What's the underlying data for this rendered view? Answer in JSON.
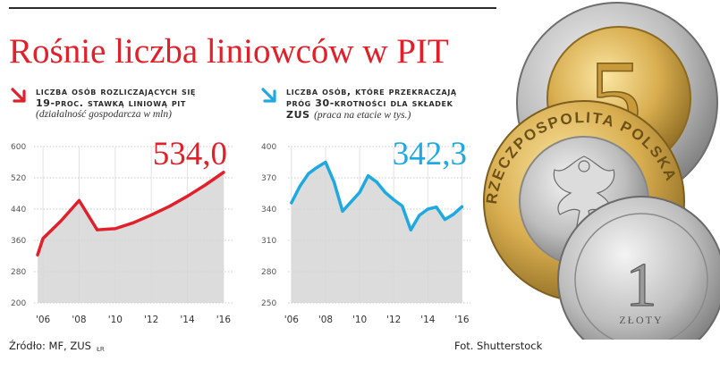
{
  "title": "Rośnie liczba liniowców w PIT",
  "colors": {
    "title": "#e0202a",
    "left_series": "#e0202a",
    "right_series": "#1fa9e1",
    "area": "#d8d8d8"
  },
  "left_panel": {
    "arrow_icon": "arrow-down-right-icon",
    "heading_line1": "Liczba osób rozliczających się",
    "heading_line2": "19-proc. stawką liniową PIT",
    "subtitle": "(działalność gospodarcza w mln)"
  },
  "right_panel": {
    "arrow_icon": "arrow-down-right-icon",
    "heading_line1": "Liczba osób, które przekraczają",
    "heading_line2": "próg 30-krotności dla składek",
    "heading_line3": "ZUS",
    "subtitle": "(praca na etacie w tys.)"
  },
  "source": {
    "text": "Źródło: MF, ZUS",
    "mark": "ŁR"
  },
  "photo_credit": "Fot. Shutterstock",
  "coins": {
    "coin_5_label": "5",
    "coin_1_label": "1",
    "coin_1_word": "ZŁOTY",
    "coin_2_text": "RZECZPOSPOLITA POLSKA"
  },
  "chart_data": [
    {
      "type": "area",
      "highlight_value": "534,0",
      "x": [
        2005.7,
        2006,
        2007,
        2008,
        2009,
        2010,
        2011,
        2012,
        2013,
        2014,
        2015,
        2016
      ],
      "values": [
        323,
        365,
        410,
        462,
        387,
        390,
        405,
        425,
        447,
        473,
        502,
        534
      ],
      "xticks": [
        "'06",
        "'08",
        "'10",
        "'12",
        "'14",
        "'16"
      ],
      "xtick_values": [
        2006,
        2008,
        2010,
        2012,
        2014,
        2016
      ],
      "yticks": [
        "600",
        "520",
        "440",
        "360",
        "280",
        "200"
      ],
      "ytick_values": [
        600,
        520,
        440,
        360,
        280,
        200
      ],
      "ylim": [
        200,
        600
      ],
      "xlim": [
        2005.5,
        2016.5
      ],
      "grid": true
    },
    {
      "type": "area",
      "highlight_value": "342,3",
      "x": [
        2006,
        2006.5,
        2007,
        2007.5,
        2008,
        2008.5,
        2009,
        2009.5,
        2010,
        2010.5,
        2011,
        2011.5,
        2012,
        2012.5,
        2013,
        2013.5,
        2014,
        2014.5,
        2015,
        2015.5,
        2016
      ],
      "values": [
        346,
        362,
        374,
        380,
        385,
        366,
        338,
        347,
        356,
        372,
        366,
        356,
        349,
        343,
        320,
        334,
        340,
        342,
        330,
        335,
        342.3
      ],
      "xticks": [
        "'06",
        "'08",
        "'10",
        "'12",
        "'14",
        "'16"
      ],
      "xtick_values": [
        2006,
        2008,
        2010,
        2012,
        2014,
        2016
      ],
      "yticks": [
        "400",
        "370",
        "340",
        "310",
        "280",
        "250"
      ],
      "ytick_values": [
        400,
        370,
        340,
        310,
        280,
        250
      ],
      "ylim": [
        250,
        400
      ],
      "xlim": [
        2005.8,
        2016.5
      ],
      "grid": true
    }
  ]
}
